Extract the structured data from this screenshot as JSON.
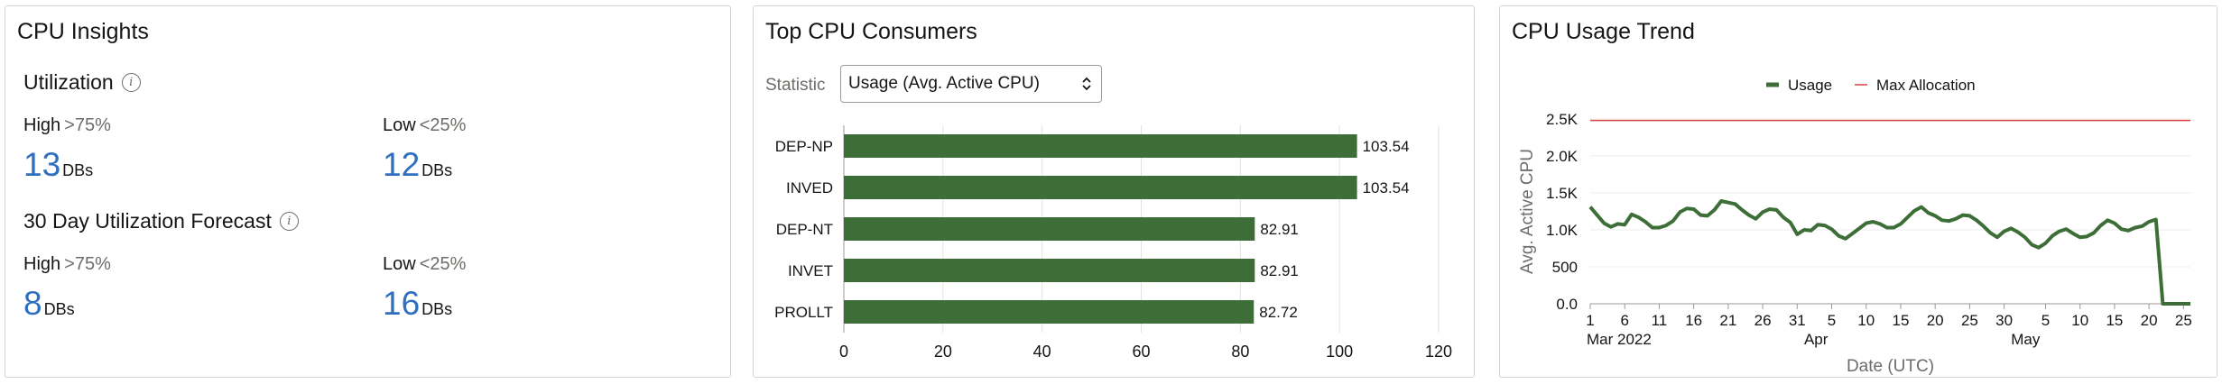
{
  "insights": {
    "title": "CPU Insights",
    "utilization": {
      "title": "Utilization",
      "info_icon": "info-icon",
      "high": {
        "label": "High",
        "threshold": ">75%",
        "value": "13",
        "unit": "DBs"
      },
      "low": {
        "label": "Low",
        "threshold": "<25%",
        "value": "12",
        "unit": "DBs"
      }
    },
    "forecast": {
      "title": "30 Day Utilization Forecast",
      "info_icon": "info-icon",
      "high": {
        "label": "High",
        "threshold": ">75%",
        "value": "8",
        "unit": "DBs"
      },
      "low": {
        "label": "Low",
        "threshold": "<25%",
        "value": "16",
        "unit": "DBs"
      }
    }
  },
  "consumers": {
    "title": "Top CPU Consumers",
    "statistic_label": "Statistic",
    "statistic_value": "Usage (Avg. Active CPU)",
    "select_icon": "chevron-updown-icon"
  },
  "trend": {
    "title": "CPU Usage Trend"
  },
  "colors": {
    "usage": "#3d6e37",
    "max_allocation": "#d9413e",
    "accent_number": "#2e6fbf"
  },
  "chart_data": [
    {
      "type": "bar",
      "orientation": "horizontal",
      "categories": [
        "DEP-NP",
        "INVED",
        "DEP-NT",
        "INVET",
        "PROLLT"
      ],
      "values": [
        103.54,
        103.54,
        82.91,
        82.91,
        82.72
      ],
      "data_labels": [
        "103.54",
        "103.54",
        "82.91",
        "82.91",
        "82.72"
      ],
      "xlim": [
        0,
        120
      ],
      "x_ticks": [
        "0",
        "20",
        "40",
        "60",
        "80",
        "100",
        "120"
      ],
      "color": "#3d6e37",
      "grid": "vertical"
    },
    {
      "type": "line",
      "xlabel": "Date (UTC)",
      "ylabel": "Avg. Active CPU",
      "ylim": [
        0,
        2500
      ],
      "y_ticks": [
        "0.0",
        "500",
        "1.0K",
        "1.5K",
        "2.0K",
        "2.5K"
      ],
      "x_day_labels": [
        "1",
        "6",
        "11",
        "16",
        "21",
        "26",
        "31",
        "5",
        "10",
        "15",
        "20",
        "25",
        "30",
        "5",
        "10",
        "15",
        "20",
        "25"
      ],
      "x_month_labels": [
        "Mar 2022",
        "Apr",
        "May"
      ],
      "legend": "top-center",
      "series": [
        {
          "name": "Usage",
          "color": "#3d6e37",
          "values": [
            1310,
            1200,
            1090,
            1040,
            1080,
            1070,
            1210,
            1170,
            1110,
            1030,
            1030,
            1060,
            1120,
            1240,
            1290,
            1280,
            1200,
            1190,
            1270,
            1390,
            1370,
            1350,
            1270,
            1200,
            1150,
            1240,
            1280,
            1270,
            1170,
            1100,
            940,
            1000,
            990,
            1070,
            1060,
            1010,
            920,
            880,
            950,
            1020,
            1090,
            1110,
            1080,
            1030,
            1030,
            1080,
            1170,
            1260,
            1310,
            1230,
            1190,
            1130,
            1120,
            1150,
            1200,
            1190,
            1130,
            1050,
            960,
            900,
            980,
            1020,
            970,
            900,
            800,
            760,
            820,
            920,
            980,
            1010,
            950,
            900,
            910,
            960,
            1060,
            1130,
            1090,
            1010,
            990,
            1030,
            1050,
            1110,
            1140,
            0,
            0,
            0,
            0,
            0
          ]
        },
        {
          "name": "Max Allocation",
          "color": "#d9413e",
          "values": [
            2480,
            2480,
            2480,
            2480,
            2480,
            2480,
            2480,
            2480,
            2480,
            2480,
            2480,
            2480,
            2480,
            2480,
            2480,
            2480,
            2480,
            2480,
            2480,
            2480,
            2480,
            2480,
            2480,
            2480,
            2480,
            2480,
            2480,
            2480,
            2480,
            2480,
            2480,
            2480,
            2480,
            2480,
            2480,
            2480,
            2480,
            2480,
            2480,
            2480,
            2480,
            2480,
            2480,
            2480,
            2480,
            2480,
            2480,
            2480,
            2480,
            2480,
            2480,
            2480,
            2480,
            2480,
            2480,
            2480,
            2480,
            2480,
            2480,
            2480,
            2480,
            2480,
            2480,
            2480,
            2480,
            2480,
            2480,
            2480,
            2480,
            2480,
            2480,
            2480,
            2480,
            2480,
            2480,
            2480,
            2480,
            2480,
            2480,
            2480,
            2480,
            2480,
            2480,
            2480,
            2480,
            2480,
            2480,
            2480
          ]
        }
      ]
    }
  ]
}
